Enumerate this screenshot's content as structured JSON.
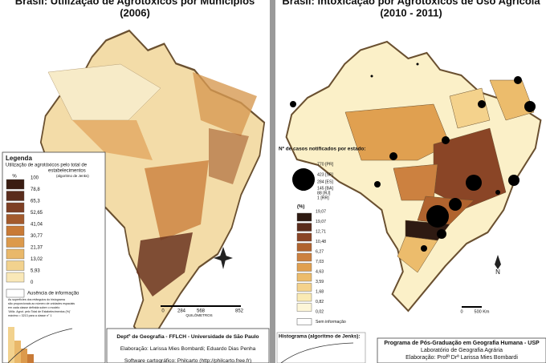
{
  "left_panel": {
    "title": [
      "Brasil: Utilização de Agrotóxicos por Municípios",
      "(2006)"
    ],
    "legend": {
      "heading": "Legenda",
      "subtitle": [
        "Utilização de agrotóxicos pelo total de",
        "estabelecimentos"
      ],
      "method": "(algoritmo de Jenks)",
      "unit": "%",
      "classes": [
        "100",
        "78,8",
        "65,3",
        "52,65",
        "41,04",
        "30,77",
        "21,37",
        "13,02",
        "5,93",
        "0"
      ],
      "colors": [
        "#3a1d12",
        "#5a2c1c",
        "#7e3f24",
        "#a35a2c",
        "#c87a36",
        "#dc9a4c",
        "#e9b86a",
        "#f2d28e",
        "#f9e8b8"
      ],
      "no_data": "Ausência de informação"
    },
    "note": [
      "As superfícies dos retângulos do histograma",
      "são proporcionais ao número de unidades espaciais",
      "em cada classe definida sobre o modelo",
      "'Utiliz. Agrot. pelo Total de Estabelecimentos (%)'",
      "máximo = 3213 para a classe n° 1"
    ],
    "scale": {
      "ticks": [
        "0",
        "284",
        "568",
        "852"
      ],
      "unit": "QUILÔMETROS"
    },
    "credits": [
      "Deptº de Geografia - FFLCH - Universidade de São Paulo",
      "Elaboração: Larissa Mies Bombardi; Eduardo Dias Penha",
      "Software cartográfico: Philcarto (http://philcarto.free.fr)"
    ]
  },
  "right_panel": {
    "title": [
      "Brasil: Intoxicação por Agrotóxicos de Uso Agrícola",
      "(2010 - 2011)"
    ],
    "circles_heading": "Nº de casos notificados por estado:",
    "circles": [
      "770 [PR]",
      "423 [SP]",
      "284 [ES]",
      "145 [BA]",
      "88 [RJ]",
      "1 [RR]"
    ],
    "legend": {
      "unit": "(%)",
      "classes": [
        "19,07",
        "19,07",
        "12,71",
        "10,48",
        "6,27",
        "7,03",
        "4,63",
        "3,59",
        "1,68",
        "0,82",
        "0,02"
      ],
      "colors": [
        "#2e1a12",
        "#5a2c1c",
        "#8a4526",
        "#b0632e",
        "#cc8140",
        "#e0a050",
        "#ecbc6c",
        "#f4d28c",
        "#faeab4",
        "#fdf6d8"
      ],
      "no_data": "Sem informação"
    },
    "scale": {
      "ticks": [
        "0",
        "500 Km"
      ]
    },
    "north": "N",
    "histogram_label": "Histograma (algoritmo de Jenks):",
    "credits": [
      "Programa de Pós-Graduação em Geografia Humana - USP",
      "Laboratório de Geografia Agrária",
      "Elaboração: Profª Drª Larissa Mies Bombardi"
    ]
  }
}
